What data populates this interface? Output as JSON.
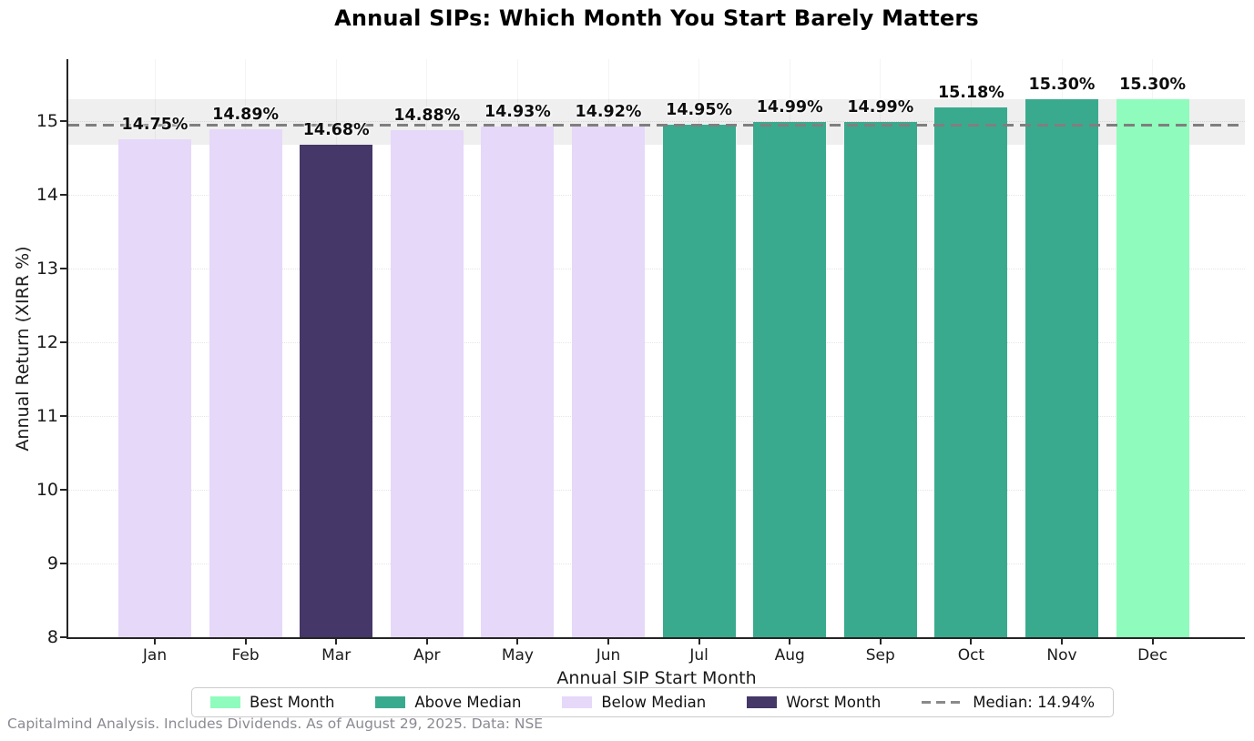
{
  "chart_data": {
    "type": "bar",
    "title": "Annual SIPs: Which Month You Start Barely Matters",
    "xlabel": "Annual SIP Start Month",
    "ylabel": "Annual Return (XIRR %)",
    "categories": [
      "Jan",
      "Feb",
      "Mar",
      "Apr",
      "May",
      "Jun",
      "Jul",
      "Aug",
      "Sep",
      "Oct",
      "Nov",
      "Dec"
    ],
    "values": [
      14.75,
      14.89,
      14.68,
      14.88,
      14.93,
      14.92,
      14.95,
      14.99,
      14.99,
      15.18,
      15.3,
      15.3
    ],
    "value_labels": [
      "14.75%",
      "14.89%",
      "14.68%",
      "14.88%",
      "14.93%",
      "14.92%",
      "14.95%",
      "14.99%",
      "14.99%",
      "15.18%",
      "15.30%",
      "15.30%"
    ],
    "bar_classes": [
      "below",
      "below",
      "worst",
      "below",
      "below",
      "below",
      "above",
      "above",
      "above",
      "above",
      "above",
      "best"
    ],
    "yticks": [
      8,
      9,
      10,
      11,
      12,
      13,
      14,
      15
    ],
    "ylim": [
      8,
      15.85
    ],
    "grid": true,
    "median_value": 14.94,
    "band_range": [
      14.68,
      15.3
    ],
    "legend_position": "bottom",
    "legend": [
      {
        "label": "Best Month",
        "type": "swatch",
        "color": "#8FFCBD"
      },
      {
        "label": "Above Median",
        "type": "swatch",
        "color": "#3AAA8E"
      },
      {
        "label": "Below Median",
        "type": "swatch",
        "color": "#E6D8F9"
      },
      {
        "label": "Worst Month",
        "type": "swatch",
        "color": "#453767"
      },
      {
        "label": "Median: 14.94%",
        "type": "dashed-line",
        "color": "#8A8A8A"
      }
    ],
    "colors": {
      "best": "#8FFCBD",
      "above": "#3AAA8E",
      "below": "#E6D8F9",
      "worst": "#453767",
      "median_line": "#7F7F7F",
      "band": "rgba(140,140,140,0.14)",
      "axis": "#262626"
    },
    "footnote": "Capitalmind Analysis. Includes Dividends. As of August 29, 2025. Data: NSE"
  }
}
